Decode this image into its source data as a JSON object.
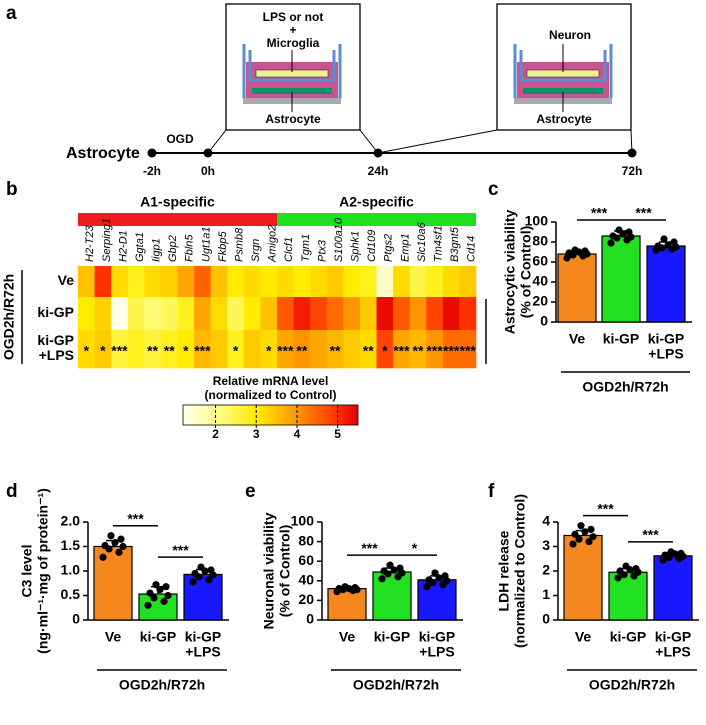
{
  "diagram": {
    "panel": "a",
    "start_label": "Astrocyte",
    "treatment": "OGD",
    "times": [
      "-2h",
      "0h",
      "24h",
      "72h"
    ],
    "box1": {
      "top": [
        "LPS or not",
        "+",
        "Microglia"
      ],
      "bottom": "Astrocyte"
    },
    "box2": {
      "top": [
        "Neuron"
      ],
      "bottom": "Astrocyte"
    }
  },
  "chart_data": [
    {
      "type": "heatmap",
      "panel": "b",
      "row_group": "OGD2h/R72h",
      "rows": [
        [
          "Ve"
        ],
        [
          "ki-GP"
        ],
        [
          "ki-GP",
          "+LPS"
        ]
      ],
      "groups": [
        {
          "name": "A1-specific",
          "color": "#f01c1c",
          "genes": [
            "H2-T23",
            "Serping1",
            "H2-D1",
            "Ggta1",
            "Iigp1",
            "Gbp2",
            "Fbln5",
            "Ugt1a1",
            "Fkbp5",
            "Psmb8",
            "Srgn",
            "Amigo2"
          ],
          "values": [
            [
              3.5,
              5.0,
              3.2,
              2.8,
              3.2,
              3.3,
              3.8,
              4.5,
              3.5,
              3.0,
              3.2,
              3.0
            ],
            [
              3.0,
              3.3,
              1.2,
              2.5,
              2.2,
              2.4,
              2.8,
              3.8,
              3.2,
              2.4,
              3.0,
              3.5
            ],
            [
              3.2,
              3.4,
              2.6,
              2.8,
              2.6,
              2.8,
              3.0,
              3.6,
              3.4,
              2.8,
              3.4,
              3.2
            ]
          ],
          "stars": [
            "*",
            "*",
            "***",
            null,
            "**",
            "**",
            "*",
            "***",
            null,
            "*",
            null,
            "*"
          ]
        },
        {
          "name": "A2-specific",
          "color": "#1fe01f",
          "genes": [
            "Clcf1",
            "Tgm1",
            "Ptx3",
            "S100a10",
            "Sphk1",
            "Cd109",
            "Ptgs2",
            "Emp1",
            "Slc10a6",
            "Tm4sf1",
            "B3gnt5",
            "Cd14"
          ],
          "values": [
            [
              3.2,
              3.0,
              3.2,
              3.4,
              3.0,
              2.8,
              1.5,
              3.2,
              2.5,
              2.8,
              3.2,
              3.4
            ],
            [
              4.6,
              5.2,
              4.8,
              4.4,
              4.0,
              3.4,
              5.4,
              4.6,
              4.0,
              4.8,
              5.4,
              5.0
            ],
            [
              3.8,
              4.0,
              3.8,
              3.6,
              3.4,
              3.2,
              4.8,
              3.8,
              3.6,
              4.0,
              4.4,
              4.4
            ]
          ],
          "stars": [
            "***",
            "**",
            null,
            "**",
            null,
            "**",
            "*",
            "***",
            "**",
            "***",
            "***",
            "***"
          ]
        }
      ],
      "colorbar": {
        "title": [
          "Relative mRNA level",
          "(normalized to Control)"
        ],
        "lim": [
          1.2,
          5.5
        ],
        "ticks": [
          2,
          3,
          4,
          5
        ]
      }
    },
    {
      "type": "bar",
      "panel": "c",
      "ylabel": [
        "Astrocytic viability",
        "(% of Control)"
      ],
      "categories": [
        [
          "Ve"
        ],
        [
          "ki-GP"
        ],
        [
          "ki-GP",
          "+LPS"
        ]
      ],
      "colors": [
        "#f5871f",
        "#22e022",
        "#1818ff"
      ],
      "values": [
        68,
        86,
        76
      ],
      "errors": [
        3,
        5,
        4
      ],
      "points": [
        [
          64,
          66,
          67,
          68,
          69,
          70,
          71,
          72
        ],
        [
          79,
          82,
          84,
          85,
          86,
          88,
          90,
          92
        ],
        [
          72,
          73,
          74,
          75,
          76,
          77,
          80,
          83
        ]
      ],
      "ylim": [
        0,
        100
      ],
      "yticks": [
        0,
        20,
        40,
        60,
        80,
        100
      ],
      "group_label": "OGD2h/R72h",
      "significance": [
        {
          "pair": [
            0,
            1
          ],
          "label": "***"
        },
        {
          "pair": [
            1,
            2
          ],
          "label": "***"
        }
      ]
    },
    {
      "type": "bar",
      "panel": "d",
      "ylabel": [
        "C3 level",
        "(ng·ml⁻¹·mg of protein⁻¹)"
      ],
      "categories": [
        [
          "Ve"
        ],
        [
          "ki-GP"
        ],
        [
          "ki-GP",
          "+LPS"
        ]
      ],
      "colors": [
        "#f5871f",
        "#22e022",
        "#1818ff"
      ],
      "values": [
        1.5,
        0.53,
        0.93
      ],
      "errors": [
        0.12,
        0.15,
        0.1
      ],
      "points": [
        [
          1.28,
          1.38,
          1.45,
          1.5,
          1.52,
          1.58,
          1.65,
          1.72
        ],
        [
          0.3,
          0.38,
          0.45,
          0.5,
          0.55,
          0.62,
          0.68,
          0.72
        ],
        [
          0.78,
          0.82,
          0.88,
          0.92,
          0.95,
          1.0,
          1.02,
          1.08
        ]
      ],
      "ylim": [
        0,
        2
      ],
      "yticks": [
        0,
        0.5,
        {
          "value": 1,
          "label": "1.0"
        },
        1.5,
        {
          "value": 2,
          "label": "2.0"
        }
      ],
      "group_label": "OGD2h/R72h",
      "significance": [
        {
          "pair": [
            0,
            1
          ],
          "label": "***"
        },
        {
          "pair": [
            1,
            2
          ],
          "label": "***"
        }
      ]
    },
    {
      "type": "bar",
      "panel": "e",
      "ylabel": [
        "Neuronal viability",
        "(% of Control)"
      ],
      "categories": [
        [
          "Ve"
        ],
        [
          "ki-GP"
        ],
        [
          "ki-GP",
          "+LPS"
        ]
      ],
      "colors": [
        "#f5871f",
        "#22e022",
        "#1818ff"
      ],
      "values": [
        32,
        49,
        41
      ],
      "errors": [
        1.5,
        4,
        4
      ],
      "points": [
        [
          29,
          30,
          31,
          31,
          32,
          32,
          33,
          34
        ],
        [
          42,
          44,
          47,
          48,
          50,
          51,
          53,
          56
        ],
        [
          34,
          36,
          38,
          40,
          41,
          43,
          45,
          48
        ]
      ],
      "ylim": [
        0,
        100
      ],
      "yticks": [
        0,
        20,
        40,
        60,
        80,
        100
      ],
      "group_label": "OGD2h/R72h",
      "significance": [
        {
          "pair": [
            0,
            1
          ],
          "label": "***"
        },
        {
          "pair": [
            1,
            2
          ],
          "label": "*"
        }
      ]
    },
    {
      "type": "bar",
      "panel": "f",
      "ylabel": [
        "LDH release",
        "(normalized to Control)"
      ],
      "categories": [
        [
          "Ve"
        ],
        [
          "ki-GP"
        ],
        [
          "ki-GP",
          "+LPS"
        ]
      ],
      "colors": [
        "#f5871f",
        "#22e022",
        "#1818ff"
      ],
      "values": [
        3.45,
        1.95,
        2.62
      ],
      "errors": [
        0.2,
        0.15,
        0.1
      ],
      "points": [
        [
          3.1,
          3.2,
          3.3,
          3.4,
          3.5,
          3.6,
          3.7,
          3.85
        ],
        [
          1.72,
          1.8,
          1.85,
          1.95,
          2.0,
          2.05,
          2.1,
          2.2
        ],
        [
          2.45,
          2.5,
          2.55,
          2.6,
          2.65,
          2.7,
          2.72,
          2.78
        ]
      ],
      "ylim": [
        0,
        4
      ],
      "yticks": [
        0,
        1,
        2,
        3,
        4
      ],
      "group_label": "OGD2h/R72h",
      "significance": [
        {
          "pair": [
            0,
            1
          ],
          "label": "***"
        },
        {
          "pair": [
            1,
            2
          ],
          "label": "***"
        }
      ]
    }
  ]
}
